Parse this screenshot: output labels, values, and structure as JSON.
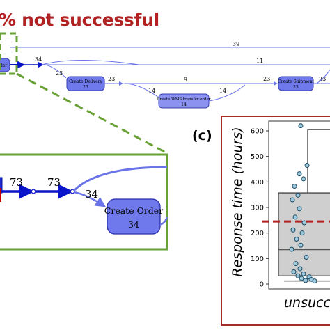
{
  "headline": "% not successful",
  "process_map": {
    "edge_labels": [
      "39",
      "34",
      "23",
      "23",
      "14",
      "9",
      "14",
      "23",
      "11",
      "23",
      "73",
      "73",
      "34"
    ],
    "nodes": {
      "partial_order": "der",
      "create_delivery": [
        "Create Delivery",
        "23"
      ],
      "create_wms_transfer": [
        "Create WMS transfer order",
        "14"
      ],
      "create_shipment": [
        "Create Shipment",
        "23"
      ],
      "create_order": [
        "Create Order",
        "34"
      ]
    }
  },
  "panel_c": {
    "label": "(c)",
    "chart_data": {
      "type": "box",
      "ylabel": "Response time (hours)",
      "yticks": [
        "0",
        "100",
        "200",
        "300",
        "400",
        "500",
        "600"
      ],
      "ylim": [
        0,
        640
      ],
      "category": "unsuccessful",
      "category_visible_text": "unsucce",
      "box": {
        "q1": 32,
        "median": 135,
        "q3": 357,
        "whisker_high": 605,
        "whisker_low": 12
      },
      "mean_line": 245,
      "points": [
        620,
        465,
        432,
        412,
        383,
        348,
        330,
        295,
        262,
        240,
        212,
        200,
        176,
        152,
        136,
        105,
        80,
        60,
        48,
        40,
        32,
        28,
        22,
        18,
        14,
        12
      ]
    }
  }
}
